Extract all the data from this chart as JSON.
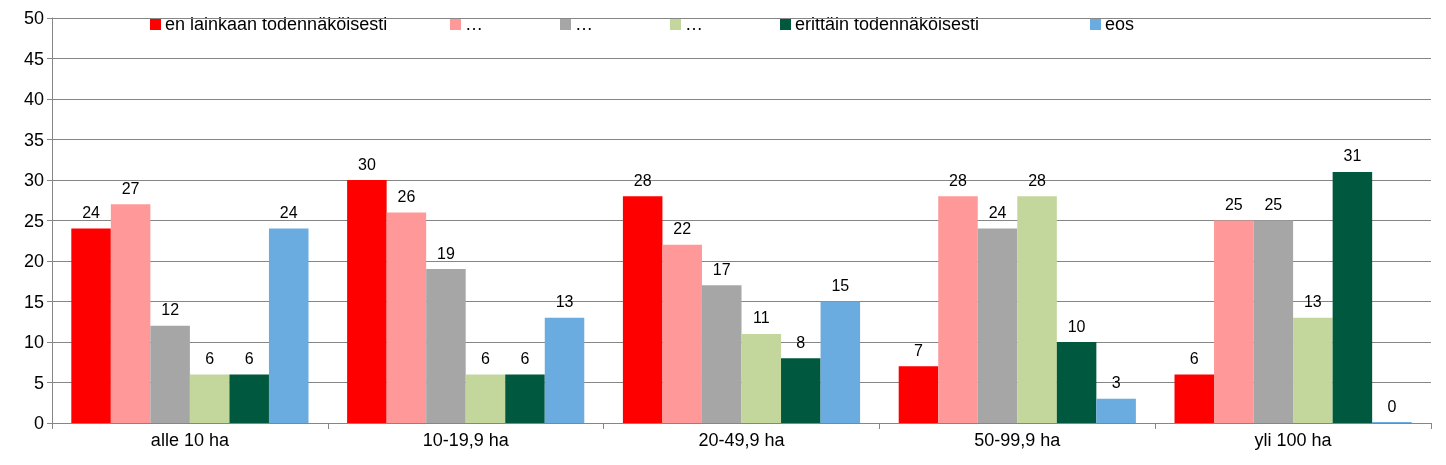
{
  "chart_data": {
    "type": "bar",
    "categories": [
      "alle 10 ha",
      "10-19,9 ha",
      "20-49,9 ha",
      "50-99,9 ha",
      "yli 100 ha"
    ],
    "series": [
      {
        "name": "en lainkaan todennäköisesti",
        "color": "#ff0000",
        "values": [
          24,
          30,
          28,
          7,
          6
        ]
      },
      {
        "name": "…",
        "color": "#ff9999",
        "values": [
          27,
          26,
          22,
          28,
          25
        ]
      },
      {
        "name": "…",
        "color": "#a6a6a6",
        "values": [
          12,
          19,
          17,
          24,
          25
        ]
      },
      {
        "name": "…",
        "color": "#c3d69b",
        "values": [
          6,
          6,
          11,
          28,
          13
        ]
      },
      {
        "name": "erittäin todennäköisesti",
        "color": "#00583f",
        "values": [
          6,
          6,
          8,
          10,
          31
        ]
      },
      {
        "name": "eos",
        "color": "#6aace0",
        "values": [
          24,
          13,
          15,
          3,
          0
        ]
      }
    ],
    "ylim": [
      0,
      50
    ],
    "yticks": [
      0,
      5,
      10,
      15,
      20,
      25,
      30,
      35,
      40,
      45,
      50
    ],
    "grid": "y",
    "legend": "top",
    "data_labels": true
  }
}
